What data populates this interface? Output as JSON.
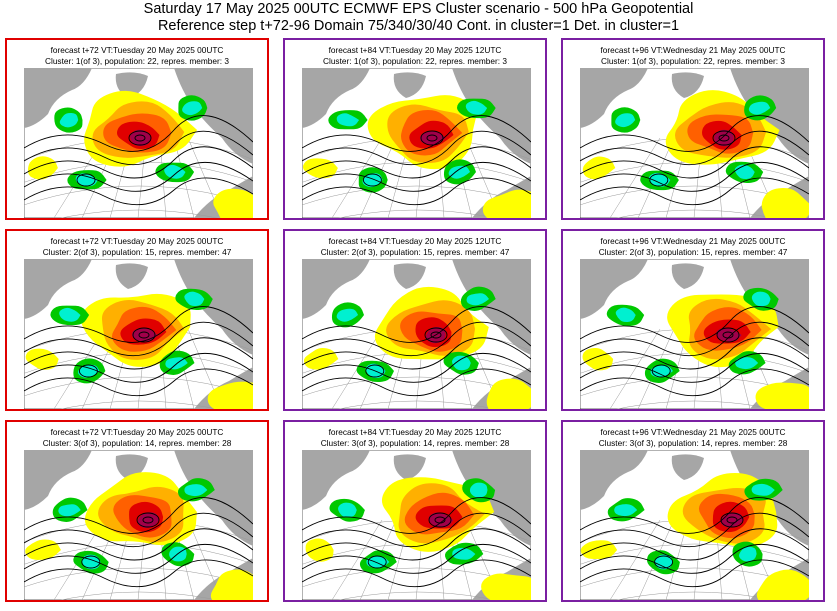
{
  "header": {
    "line1": "Saturday 17 May 2025 00UTC ECMWF EPS Cluster scenario - 500 hPa Geopotential",
    "line2": "Reference step t+72-96 Domain 75/340/30/40 Cont. in cluster=1 Det. in cluster=1"
  },
  "colors": {
    "border_t72": "#e00000",
    "border_other": "#7a1fa2",
    "positive_anomaly": [
      "#ffff00",
      "#ffb000",
      "#ff6000",
      "#e00000",
      "#a0004a"
    ],
    "negative_anomaly": [
      "#00c800",
      "#00f0d0"
    ],
    "land": "#a6a6a6"
  },
  "panels": [
    {
      "caption1": "forecast t+72 VT:Tuesday 20 May 2025 00UTC",
      "caption2": "Cluster: 1(of 3), population: 22, repres. member: 3"
    },
    {
      "caption1": "forecast t+84 VT:Tuesday 20 May 2025 12UTC",
      "caption2": "Cluster: 1(of 3), population: 22, repres. member: 3"
    },
    {
      "caption1": "forecast t+96 VT:Wednesday 21 May 2025 00UTC",
      "caption2": "Cluster: 1(of 3), population: 22, repres. member: 3"
    },
    {
      "caption1": "forecast t+72 VT:Tuesday 20 May 2025 00UTC",
      "caption2": "Cluster: 2(of 3), population: 15, repres. member: 47"
    },
    {
      "caption1": "forecast t+84 VT:Tuesday 20 May 2025 12UTC",
      "caption2": "Cluster: 2(of 3), population: 15, repres. member: 47"
    },
    {
      "caption1": "forecast t+96 VT:Wednesday 21 May 2025 00UTC",
      "caption2": "Cluster: 2(of 3), population: 15, repres. member: 47"
    },
    {
      "caption1": "forecast t+72 VT:Tuesday 20 May 2025 00UTC",
      "caption2": "Cluster: 3(of 3), population: 14, repres. member: 28"
    },
    {
      "caption1": "forecast t+84 VT:Tuesday 20 May 2025 12UTC",
      "caption2": "Cluster: 3(of 3), population: 14, repres. member: 28"
    },
    {
      "caption1": "forecast t+96 VT:Wednesday 21 May 2025 00UTC",
      "caption2": "Cluster: 3(of 3), population: 14, repres. member: 28"
    }
  ]
}
